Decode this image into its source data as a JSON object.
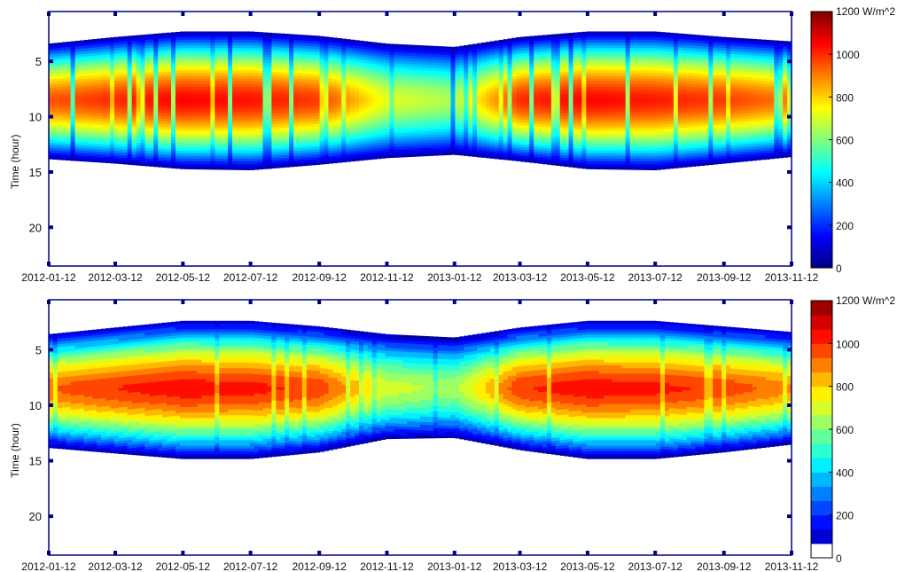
{
  "chart_data": [
    {
      "type": "heatmap",
      "title": "",
      "xlabel": "",
      "ylabel": "Time (hour)",
      "x_ticks": [
        "2012-01-12",
        "2012-03-12",
        "2012-05-12",
        "2012-07-12",
        "2012-09-12",
        "2012-11-12",
        "2013-01-12",
        "2013-03-12",
        "2013-05-12",
        "2013-07-12",
        "2013-09-12",
        "2013-11-12"
      ],
      "y_ticks": [
        5,
        10,
        15,
        20
      ],
      "y_range": [
        0.5,
        23.5
      ],
      "y_reversed": true,
      "x_range": [
        "2012-01-12",
        "2013-11-12"
      ],
      "colorbar": {
        "min": 0,
        "max": 1200,
        "ticks": [
          0,
          200,
          400,
          600,
          800,
          1000,
          1200
        ],
        "top_label": "1200 W/m^2",
        "colormap": "jet",
        "discrete": false
      },
      "profile": {
        "description_of_values": "daylight irradiance band; sunrise/sunset hour and peak irradiance by date",
        "dates": [
          "2012-01-12",
          "2012-03-12",
          "2012-05-12",
          "2012-07-12",
          "2012-09-12",
          "2012-11-12",
          "2013-01-12",
          "2013-03-12",
          "2013-05-12",
          "2013-07-12",
          "2013-09-12",
          "2013-11-12"
        ],
        "sunrise_hour": [
          3.4,
          2.8,
          2.3,
          2.3,
          2.7,
          3.4,
          3.7,
          2.8,
          2.3,
          2.3,
          2.8,
          3.2
        ],
        "sunset_hour": [
          13.8,
          14.2,
          14.7,
          14.8,
          14.3,
          13.7,
          13.4,
          14.0,
          14.7,
          14.8,
          14.2,
          13.6
        ],
        "peak_hour": [
          8.5,
          8.5,
          8.5,
          8.5,
          8.5,
          8.5,
          8.5,
          8.5,
          8.5,
          8.5,
          8.5,
          8.5
        ],
        "peak_wm2": [
          950,
          1000,
          1050,
          1030,
          980,
          720,
          650,
          1000,
          1050,
          1020,
          980,
          900
        ]
      }
    },
    {
      "type": "heatmap",
      "title": "",
      "xlabel": "",
      "ylabel": "Time (hour)",
      "x_ticks": [
        "2012-01-12",
        "2012-03-12",
        "2012-05-12",
        "2012-07-12",
        "2012-09-12",
        "2012-11-12",
        "2013-01-12",
        "2013-03-12",
        "2013-05-12",
        "2013-07-12",
        "2013-09-12",
        "2013-11-12"
      ],
      "y_ticks": [
        5,
        10,
        15,
        20
      ],
      "y_range": [
        0.5,
        23.5
      ],
      "y_reversed": true,
      "x_range": [
        "2012-01-12",
        "2013-11-12"
      ],
      "colorbar": {
        "min": 0,
        "max": 1200,
        "ticks": [
          0,
          200,
          400,
          600,
          800,
          1000,
          1200
        ],
        "top_label": "1200 W/m^2",
        "colormap": "jet",
        "discrete": true,
        "levels": 18
      },
      "profile": {
        "description_of_values": "modeled (clear-sky) irradiance band; sunrise/sunset hour and peak irradiance by date",
        "dates": [
          "2012-01-12",
          "2012-03-12",
          "2012-05-12",
          "2012-07-12",
          "2012-09-12",
          "2012-11-12",
          "2013-01-12",
          "2013-03-12",
          "2013-05-12",
          "2013-07-12",
          "2013-09-12",
          "2013-11-12"
        ],
        "sunrise_hour": [
          3.6,
          3.0,
          2.4,
          2.4,
          2.9,
          3.6,
          3.9,
          3.0,
          2.4,
          2.4,
          2.9,
          3.4
        ],
        "sunset_hour": [
          13.8,
          14.3,
          14.8,
          14.8,
          14.2,
          13.0,
          12.9,
          14.0,
          14.8,
          14.8,
          14.2,
          13.5
        ],
        "peak_hour": [
          8.5,
          8.5,
          8.5,
          8.5,
          8.5,
          8.5,
          8.5,
          8.5,
          8.5,
          8.5,
          8.5,
          8.5
        ],
        "peak_wm2": [
          930,
          1000,
          1040,
          1020,
          980,
          700,
          640,
          990,
          1040,
          1020,
          980,
          880
        ]
      }
    }
  ]
}
